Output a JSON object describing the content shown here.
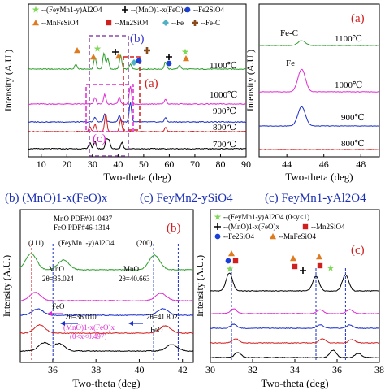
{
  "banner": {
    "b": "(b) (MnO)1-x(FeO)x",
    "c_mid": "(c) FeyMn2-ySiO4",
    "c_right": "(c) FeyMn1-yAl2O4"
  },
  "chart_data": [
    {
      "id": "main",
      "type": "line",
      "xlabel": "Two-theta (deg)",
      "ylabel": "Intensity (A.U.)",
      "xlim": [
        5,
        90
      ],
      "xticks": [
        10,
        20,
        30,
        40,
        50,
        60,
        70,
        80,
        90
      ],
      "legend": [
        {
          "symbol": "star",
          "color": "#7ed957",
          "label": "--(FeyMn1-y)Al2O4"
        },
        {
          "symbol": "plus",
          "color": "#000000",
          "label": "--(MnO)1-x(FeO)x"
        },
        {
          "symbol": "circle",
          "color": "#1a3fd6",
          "label": "--Fe2SiO4"
        },
        {
          "symbol": "triangle",
          "color": "#e07a1f",
          "label": "--MnFeSiO4"
        },
        {
          "symbol": "square",
          "color": "#d11f1f",
          "label": "--Mn2SiO4"
        },
        {
          "symbol": "diamond",
          "color": "#4fb0c6",
          "label": "--Fe"
        },
        {
          "symbol": "cross",
          "color": "#8b4a1a",
          "label": "--Fe-C"
        }
      ],
      "series": [
        {
          "name": "1100℃",
          "color": "#2e9e2e",
          "peaks": [
            [
              23.5,
              6
            ],
            [
              31,
              15
            ],
            [
              34.5,
              20
            ],
            [
              36,
              13
            ],
            [
              41,
              17
            ],
            [
              44.8,
              6
            ],
            [
              58.5,
              9
            ],
            [
              64,
              5
            ]
          ]
        },
        {
          "name": "1000℃",
          "color": "#e02ad3",
          "peaks": [
            [
              31,
              8
            ],
            [
              34.8,
              12
            ],
            [
              40.5,
              8
            ],
            [
              44.8,
              22
            ],
            [
              58.5,
              6
            ]
          ]
        },
        {
          "name": "900℃",
          "color": "#1a2fc9",
          "peaks": [
            [
              31,
              6
            ],
            [
              34.8,
              10
            ],
            [
              40.5,
              8
            ],
            [
              44.8,
              24
            ],
            [
              58.5,
              5
            ]
          ]
        },
        {
          "name": "800℃",
          "color": "#d11f1f",
          "peaks": [
            [
              29,
              6
            ],
            [
              31,
              9
            ],
            [
              35.2,
              22
            ],
            [
              41,
              15
            ],
            [
              58.5,
              5
            ]
          ]
        },
        {
          "name": "700℃",
          "color": "#000000",
          "peaks": [
            [
              29,
              8
            ],
            [
              31,
              9
            ],
            [
              35.5,
              12
            ],
            [
              36.5,
              10
            ],
            [
              41.5,
              8
            ]
          ]
        }
      ],
      "annotations": [
        "(b)",
        "(a)",
        "(c)"
      ]
    },
    {
      "id": "a",
      "type": "line",
      "panel_label": "(a)",
      "xlabel": "Two-theta (deg)",
      "ylabel": "Intensity (A.U.)",
      "xlim": [
        42.5,
        49
      ],
      "xticks": [
        44,
        46,
        48
      ],
      "annotations": [
        "Fe-C",
        "Fe"
      ],
      "series": [
        {
          "name": "1100℃",
          "color": "#2e9e2e",
          "peaks": [
            [
              44.8,
              6
            ]
          ]
        },
        {
          "name": "1000℃",
          "color": "#e02ad3",
          "peaks": [
            [
              44.8,
              28
            ]
          ]
        },
        {
          "name": "900℃",
          "color": "#1a2fc9",
          "peaks": [
            [
              44.8,
              24
            ]
          ]
        },
        {
          "name": "800℃",
          "color": "#d11f1f",
          "peaks": []
        }
      ]
    },
    {
      "id": "b",
      "type": "line",
      "panel_label": "(b)",
      "xlabel": "Two-theta (deg)",
      "ylabel": "Intensity (A.U.)",
      "xlim": [
        34.5,
        42.5
      ],
      "xticks": [
        36,
        38,
        40,
        42
      ],
      "pdf_lines": [
        "MnO  PDF#01-0437",
        "FeO   PDF#46-1314"
      ],
      "annotations": [
        "(111)",
        "(FeyMn1-y)Al2O4",
        "(200)",
        "MnO",
        "2θ=35.024",
        "MnO",
        "2θ=40.663",
        "FeO",
        "2θ=36.010",
        "2θ=41.802",
        "FeO",
        "(MnO)1-x(FeO)x",
        "(0<x<0.497)"
      ],
      "reference_lines_2theta": [
        35.024,
        36.01,
        40.663,
        41.802
      ],
      "series": [
        {
          "name": "1100℃",
          "color": "#2e9e2e",
          "peaks": [
            [
              35.0,
              20
            ],
            [
              36.5,
              12
            ],
            [
              40.7,
              18
            ]
          ]
        },
        {
          "name": "1000℃",
          "color": "#e02ad3",
          "peaks": [
            [
              35.2,
              10
            ],
            [
              41.0,
              9
            ]
          ]
        },
        {
          "name": "900℃",
          "color": "#1a2fc9",
          "peaks": [
            [
              35.3,
              8
            ],
            [
              41.1,
              8
            ]
          ]
        },
        {
          "name": "800℃",
          "color": "#d11f1f",
          "peaks": [
            [
              35.4,
              10
            ],
            [
              41.2,
              9
            ]
          ]
        },
        {
          "name": "700℃",
          "color": "#000000",
          "peaks": [
            [
              35.6,
              10
            ],
            [
              36.3,
              9
            ],
            [
              41.5,
              8
            ]
          ]
        }
      ]
    },
    {
      "id": "c",
      "type": "line",
      "panel_label": "(c)",
      "xlabel": "Two-theta (deg)",
      "ylabel": "Intensity (A.U.)",
      "xlim": [
        30,
        38
      ],
      "xticks": [
        30,
        32,
        34,
        36,
        38
      ],
      "legend": [
        {
          "symbol": "star",
          "color": "#7ed957",
          "label": "--(FeyMn1-y)Al2O4  (0≤y≤1)"
        },
        {
          "symbol": "plus",
          "color": "#000000",
          "label": "--(MnO)1-x(FeO)x"
        },
        {
          "symbol": "square",
          "color": "#d11f1f",
          "label": "--Mn2SiO4"
        },
        {
          "symbol": "circle",
          "color": "#1a3fd6",
          "label": "--Fe2SiO4"
        },
        {
          "symbol": "triangle",
          "color": "#e07a1f",
          "label": "--MnFeSiO4"
        }
      ],
      "reference_lines_2theta": [
        31.0,
        35.0,
        36.4
      ],
      "series": [
        {
          "name": "1100℃",
          "color": "#000000",
          "peaks": [
            [
              30.9,
              22
            ],
            [
              35.0,
              18
            ],
            [
              36.4,
              20
            ]
          ]
        },
        {
          "name": "1000℃",
          "color": "#e02ad3",
          "peaks": [
            [
              31.1,
              6
            ],
            [
              35.2,
              5
            ],
            [
              36.6,
              5
            ]
          ]
        },
        {
          "name": "900℃",
          "color": "#1a2fc9",
          "peaks": [
            [
              31.1,
              5
            ],
            [
              35.2,
              4
            ],
            [
              36.6,
              4
            ]
          ]
        },
        {
          "name": "800℃",
          "color": "#d11f1f",
          "peaks": [
            [
              31.2,
              5
            ],
            [
              35.3,
              5
            ],
            [
              36.7,
              4
            ]
          ]
        },
        {
          "name": "700℃",
          "color": "#000000",
          "peaks": [
            [
              31.3,
              6
            ],
            [
              35.8,
              9
            ],
            [
              37.0,
              5
            ]
          ]
        }
      ]
    }
  ]
}
